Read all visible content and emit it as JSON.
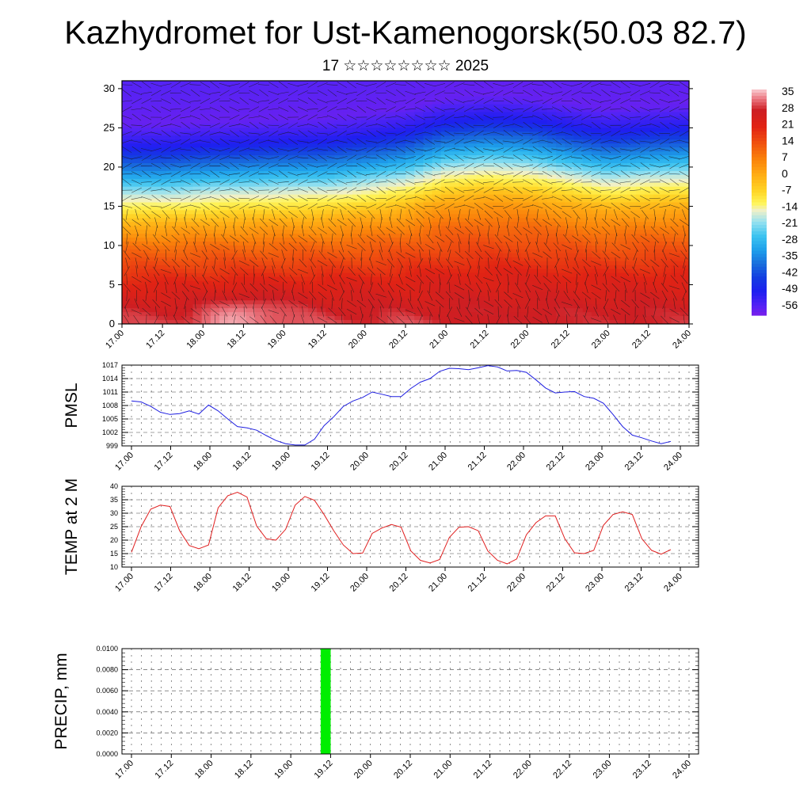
{
  "page": {
    "title": "Kazhydromet for Ust-Kamenogorsk(50.03 82.7)",
    "subtitle": "17 ☆☆☆☆☆☆☆☆ 2025"
  },
  "colors": {
    "pmsl_line": "#1f1fe0",
    "temp_line": "#e01f1f",
    "precip_bar": "#00ee00",
    "axis": "#000000"
  },
  "chart_data": [
    {
      "type": "heatmap",
      "id": "cross-section",
      "x_ticks": [
        "17.00",
        "17.12",
        "18.00",
        "18.12",
        "19.00",
        "19.12",
        "20.00",
        "20.12",
        "21.00",
        "21.12",
        "22.00",
        "22.12",
        "23.00",
        "23.12",
        "24.00"
      ],
      "y_ticks": [
        0,
        5,
        10,
        15,
        20,
        25,
        30
      ],
      "ylim": [
        0,
        31
      ],
      "colorbar": {
        "labels": [
          "35",
          "28",
          "21",
          "14",
          "7",
          "0",
          "-7",
          "-14",
          "-21",
          "-28",
          "-35",
          "-42",
          "-49",
          "-56"
        ],
        "range": [
          -60,
          37
        ]
      },
      "temperature_profile": {
        "heights": [
          0,
          5,
          10,
          13,
          15,
          17,
          20,
          23,
          26,
          31
        ],
        "values": [
          30,
          22,
          10,
          0,
          -10,
          -18,
          -35,
          -50,
          -58,
          -56
        ]
      },
      "tropopause_height": [
        14.5,
        14.5,
        14.8,
        15.0,
        15.2,
        15.3,
        15.8,
        16.5,
        17.8,
        18.2,
        18.0,
        17.2,
        16.5,
        16.8,
        17.0
      ],
      "surface_warm_cells": [
        {
          "x": "18.12",
          "height": 3,
          "value": 37
        },
        {
          "x": "19.00",
          "height": 2.5,
          "value": 31
        },
        {
          "x": "17.00",
          "height": 2,
          "value": 30
        },
        {
          "x": "21.12",
          "height": 2,
          "value": 27
        },
        {
          "x": "22.12",
          "height": 2,
          "value": 28
        },
        {
          "x": "23.12",
          "height": 2,
          "value": 28
        }
      ]
    },
    {
      "type": "line",
      "id": "pmsl",
      "ylabel": "PMSL",
      "y_ticks": [
        999,
        1002,
        1005,
        1008,
        1011,
        1014,
        1017
      ],
      "ylim": [
        999,
        1017
      ],
      "x_ticks": [
        "17.00",
        "17.12",
        "18.00",
        "18.12",
        "19.00",
        "19.12",
        "20.00",
        "20.12",
        "21.00",
        "21.12",
        "22.00",
        "22.12",
        "23.00",
        "23.12",
        "24.00"
      ],
      "series": [
        {
          "values": [
            1009.0,
            1008.8,
            1007.8,
            1006.5,
            1006.0,
            1006.2,
            1006.8,
            1006.1,
            1008.1,
            1006.8,
            1005.0,
            1003.3,
            1003.0,
            1002.5,
            1001.3,
            1000.2,
            999.5,
            999.2,
            999.2,
            1000.5,
            1003.5,
            1005.5,
            1007.8,
            1009.0,
            1009.8,
            1011.0,
            1010.5,
            1010.0,
            1010.0,
            1011.8,
            1013.2,
            1014.0,
            1015.6,
            1016.3,
            1016.2,
            1016.0,
            1016.4,
            1016.9,
            1016.6,
            1015.7,
            1015.8,
            1015.4,
            1013.7,
            1011.9,
            1010.8,
            1011.0,
            1011.1,
            1010.0,
            1009.6,
            1008.5,
            1006.0,
            1003.3,
            1001.4,
            1000.8,
            1000.1,
            999.5,
            1000.0
          ]
        }
      ]
    },
    {
      "type": "line",
      "id": "temp2m",
      "ylabel": "TEMP at 2 M",
      "y_ticks": [
        10,
        15,
        20,
        25,
        30,
        35,
        40
      ],
      "ylim": [
        10,
        40
      ],
      "x_ticks": [
        "17.00",
        "17.12",
        "18.00",
        "18.12",
        "19.00",
        "19.12",
        "20.00",
        "20.12",
        "21.00",
        "21.12",
        "22.00",
        "22.12",
        "23.00",
        "23.12",
        "24.00"
      ],
      "series": [
        {
          "values": [
            15.5,
            25.0,
            31.5,
            33.0,
            32.5,
            23.5,
            18.0,
            16.8,
            18.2,
            32.0,
            36.5,
            37.8,
            36.0,
            25.2,
            20.5,
            20.0,
            24.0,
            33.0,
            36.2,
            34.8,
            29.5,
            23.5,
            18.2,
            15.0,
            15.2,
            22.5,
            24.5,
            25.8,
            24.8,
            16.0,
            12.5,
            11.5,
            12.8,
            21.0,
            24.8,
            25.0,
            23.5,
            16.0,
            12.5,
            11.2,
            13.0,
            22.0,
            26.5,
            29.0,
            29.0,
            20.5,
            15.3,
            15.0,
            16.2,
            25.5,
            29.5,
            30.5,
            29.5,
            20.5,
            16.2,
            14.8,
            16.5
          ]
        }
      ]
    },
    {
      "type": "bar",
      "id": "precip",
      "ylabel": "PRECIP, mm",
      "y_ticks": [
        "0.0000",
        "0.0020",
        "0.0040",
        "0.0060",
        "0.0080",
        "0.0100"
      ],
      "ylim": [
        0,
        0.01
      ],
      "x_ticks": [
        "17.00",
        "17.12",
        "18.00",
        "18.12",
        "19.00",
        "19.12",
        "20.00",
        "20.12",
        "21.00",
        "21.12",
        "22.00",
        "22.12",
        "23.00",
        "23.12",
        "24.00"
      ],
      "bars": [
        {
          "start": "19.09",
          "end": "19.12",
          "value": 0.01
        }
      ]
    }
  ]
}
